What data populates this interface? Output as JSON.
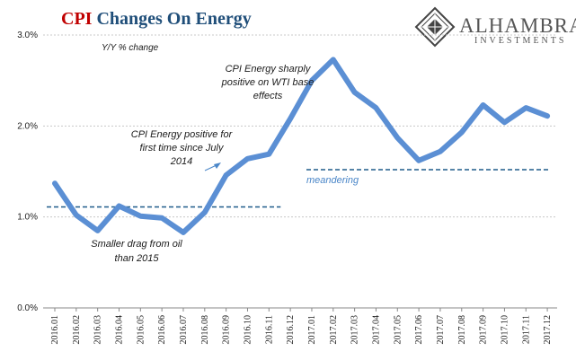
{
  "chart_data": {
    "type": "line",
    "title_part1": "CPI",
    "title_part2": " Changes On Energy",
    "subtitle": "Y/Y % change",
    "ylim": [
      0,
      3
    ],
    "yticks": [
      0,
      1,
      2,
      3
    ],
    "ytick_labels": [
      "0.0%",
      "1.0%",
      "2.0%",
      "3.0%"
    ],
    "grid": true,
    "categories": [
      "2016.01",
      "2016.02",
      "2016.03",
      "2016.04",
      "2016.05",
      "2016.06",
      "2016.07",
      "2016.08",
      "2016.09",
      "2016.10",
      "2016.11",
      "2016.12",
      "2017.01",
      "2017.02",
      "2017.03",
      "2017.04",
      "2017.05",
      "2017.06",
      "2017.07",
      "2017.08",
      "2017.09",
      "2017.10",
      "2017.11",
      "2017.12"
    ],
    "series": [
      {
        "color": "#5b8fd4",
        "values": [
          1.37,
          1.02,
          0.85,
          1.12,
          1.01,
          0.99,
          0.83,
          1.05,
          1.46,
          1.64,
          1.69,
          2.08,
          2.5,
          2.73,
          2.37,
          2.2,
          1.87,
          1.62,
          1.72,
          1.93,
          2.23,
          2.04,
          2.2,
          2.11
        ]
      }
    ],
    "reference_lines": [
      {
        "y": 1.11,
        "from": "2016.01",
        "to": "2016.11",
        "color": "#1f5b8a",
        "style": "dashed"
      },
      {
        "y": 1.52,
        "from": "2017.01",
        "to": "2017.12",
        "color": "#1f5b8a",
        "style": "dashed"
      }
    ],
    "annotations": [
      {
        "lines": [
          "CPI Energy sharply",
          "positive on WTI base",
          "effects"
        ]
      },
      {
        "lines": [
          "CPI Energy positive for",
          "first time since July",
          "2014"
        ]
      },
      {
        "lines": [
          "Smaller drag from oil",
          "than 2015"
        ]
      },
      {
        "lines": [
          "meandering"
        ],
        "color": "#4a86c8"
      }
    ]
  },
  "logo": {
    "name": "ALHAMBRA",
    "tagline": "INVESTMENTS"
  }
}
